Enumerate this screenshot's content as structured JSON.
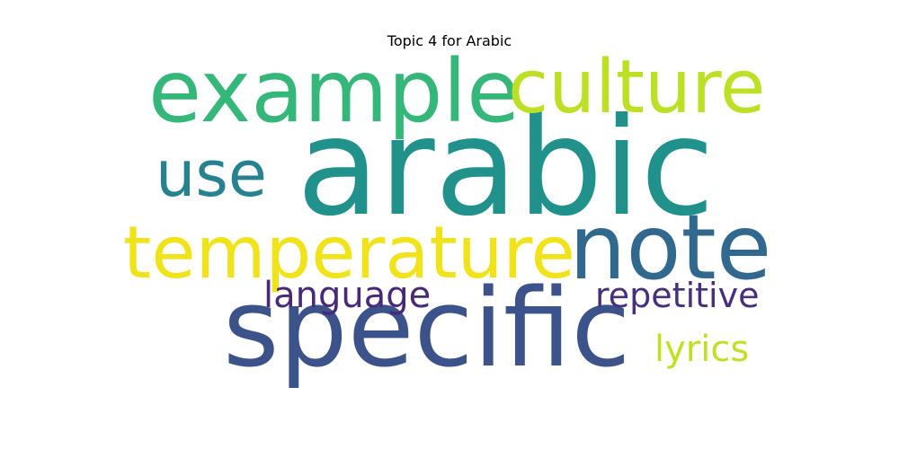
{
  "chart_data": {
    "type": "wordcloud",
    "title": "Topic 4 for Arabic",
    "words": [
      {
        "text": "arabic",
        "weight": 1.0,
        "color": "#21918c"
      },
      {
        "text": "specific",
        "weight": 0.88,
        "color": "#3b528b"
      },
      {
        "text": "example",
        "weight": 0.8,
        "color": "#35b779"
      },
      {
        "text": "note",
        "weight": 0.72,
        "color": "#31688e"
      },
      {
        "text": "culture",
        "weight": 0.7,
        "color": "#bddf26"
      },
      {
        "text": "temperature",
        "weight": 0.66,
        "color": "#f0e31a"
      },
      {
        "text": "use",
        "weight": 0.58,
        "color": "#26828e"
      },
      {
        "text": "language",
        "weight": 0.4,
        "color": "#482878"
      },
      {
        "text": "repetitive",
        "weight": 0.38,
        "color": "#472f7d"
      },
      {
        "text": "lyrics",
        "weight": 0.36,
        "color": "#c2df23"
      }
    ]
  }
}
